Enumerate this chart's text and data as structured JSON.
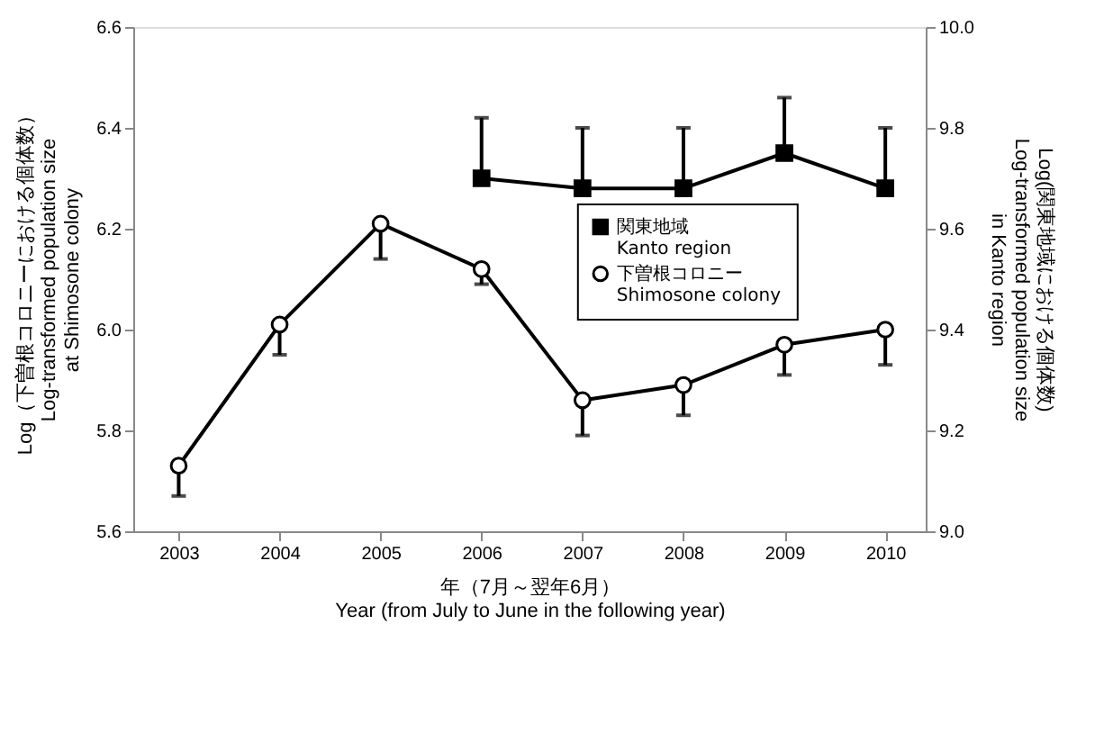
{
  "chart_data": {
    "type": "line",
    "xlabel": "年（7月～翌年6月）\nYear (from July to June in the following year)",
    "ylabel": "Log（下曽根コロニーにおける個体数）\nLog-transformed population size\nat Shimosone colony",
    "y2label": "Log(関東地域における個体数)\nLog-transformed population size\nin Kanto region",
    "xlim": [
      2002.55,
      2010.4
    ],
    "xticks": [
      2003,
      2004,
      2005,
      2006,
      2007,
      2008,
      2009,
      2010
    ],
    "ylim": [
      5.6,
      6.6
    ],
    "yticks": [
      5.6,
      5.8,
      {
        "value": 6,
        "label": "6.0"
      },
      6.2,
      6.4,
      6.6
    ],
    "y2lim": [
      9.0,
      10.0
    ],
    "y2ticks": [
      {
        "value": 9,
        "label": "9.0"
      },
      9.2,
      9.4,
      9.6,
      9.8,
      {
        "value": 10,
        "label": "10.0"
      }
    ],
    "grid": false,
    "legend": "right",
    "line_style": "solid",
    "series": [
      {
        "name": "関東地域\nKanto region",
        "color": "#000000",
        "axis": "y2",
        "marker": "square",
        "x": [
          2006,
          2007,
          2008,
          2009,
          2010
        ],
        "values": [
          9.7,
          9.68,
          9.68,
          9.75,
          9.68
        ],
        "errors": [
          [
            9.7,
            9.82
          ],
          [
            9.68,
            9.8
          ],
          [
            9.68,
            9.8
          ],
          [
            9.75,
            9.86
          ],
          [
            9.68,
            9.8
          ]
        ]
      },
      {
        "name": "下曽根コロニー\nShimosone colony",
        "color": "#000000",
        "axis": "y",
        "marker": "circle",
        "x": [
          2003,
          2004,
          2005,
          2006,
          2007,
          2008,
          2009,
          2010
        ],
        "values": [
          5.73,
          6.01,
          6.21,
          6.12,
          5.86,
          5.89,
          5.97,
          6.0
        ],
        "errors": [
          [
            5.67,
            5.73
          ],
          [
            5.95,
            6.01
          ],
          [
            6.14,
            6.21
          ],
          [
            6.09,
            6.12
          ],
          [
            5.79,
            5.86
          ],
          [
            5.83,
            5.89
          ],
          [
            5.91,
            5.97
          ],
          [
            5.93,
            6.0
          ]
        ]
      }
    ]
  }
}
